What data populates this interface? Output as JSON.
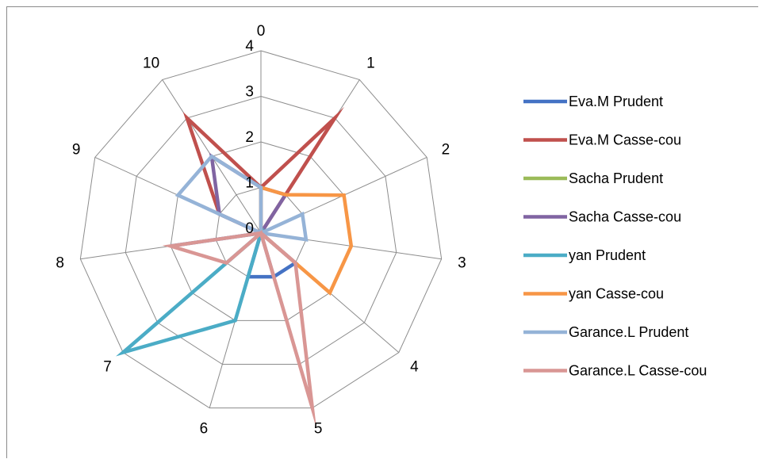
{
  "chart_data": {
    "type": "radar",
    "categories": [
      "0",
      "1",
      "2",
      "3",
      "4",
      "5",
      "6",
      "7",
      "8",
      "9",
      "10"
    ],
    "rlim": [
      0,
      4
    ],
    "ticks": [
      "0",
      "1",
      "2",
      "3",
      "4"
    ],
    "grid": true,
    "legend_position": "right",
    "series": [
      {
        "name": "Eva.M Prudent",
        "color": "#4472c4",
        "values": [
          1,
          0,
          0,
          0,
          1,
          1,
          1,
          0,
          2,
          0,
          0
        ]
      },
      {
        "name": "Eva.M Casse-cou",
        "color": "#c0504d",
        "values": [
          1,
          3,
          0,
          0,
          0,
          0,
          0,
          0,
          0,
          1,
          3
        ]
      },
      {
        "name": "Sacha Prudent",
        "color": "#9bbb59",
        "values": [
          0,
          0,
          0,
          0,
          0,
          0,
          0,
          0,
          0,
          0,
          0
        ]
      },
      {
        "name": "Sacha Casse-cou",
        "color": "#8064a2",
        "values": [
          1,
          1,
          0,
          0,
          0,
          1,
          0,
          0,
          0,
          1,
          2
        ]
      },
      {
        "name": "yan Prudent",
        "color": "#4bacc6",
        "values": [
          0,
          0,
          0,
          0,
          0,
          0,
          2,
          4,
          0,
          0,
          0
        ]
      },
      {
        "name": "yan Casse-cou",
        "color": "#f79646",
        "values": [
          1,
          1,
          2,
          2,
          2,
          0,
          0,
          0,
          0,
          0,
          0
        ]
      },
      {
        "name": "Garance.L Prudent",
        "color": "#95b3d7",
        "values": [
          1,
          0,
          1,
          1,
          0,
          0,
          0,
          0,
          0,
          2,
          2
        ]
      },
      {
        "name": "Garance.L Casse-cou",
        "color": "#d99694",
        "values": [
          0,
          0,
          0,
          0,
          1,
          4,
          0,
          1,
          2,
          0,
          0
        ]
      }
    ]
  }
}
